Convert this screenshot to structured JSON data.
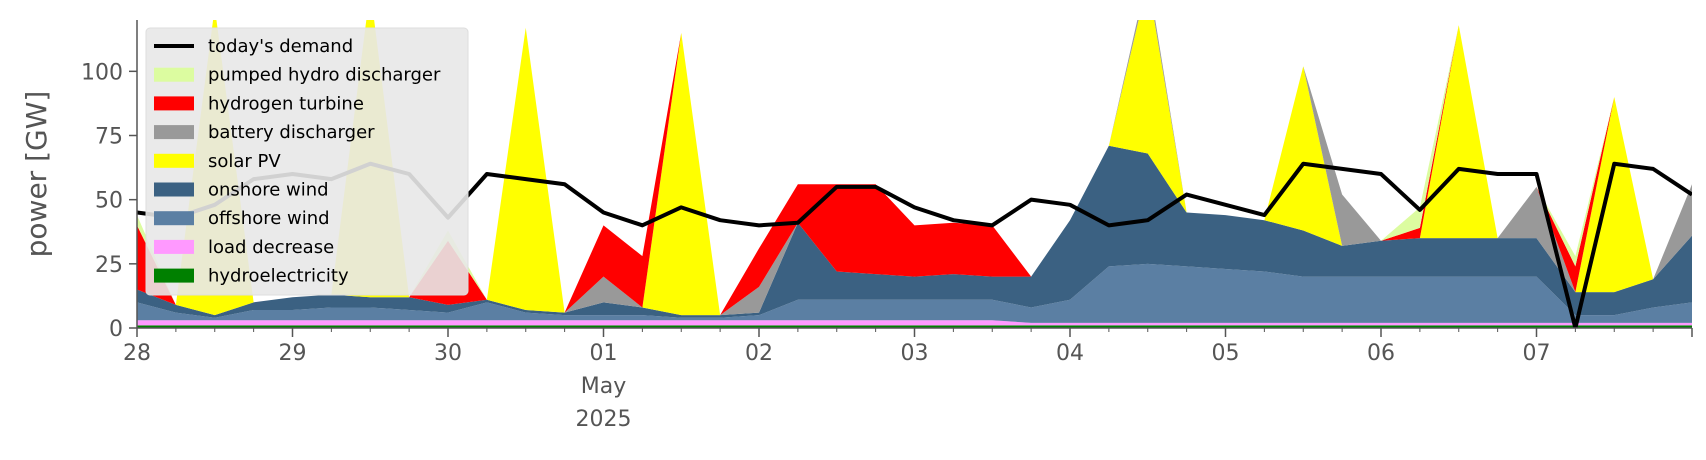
{
  "chart_data": {
    "type": "area",
    "ylabel": "power [GW]",
    "ylim": [
      0,
      120
    ],
    "xlim": [
      "2025-04-28T00:00",
      "2025-05-08T00:00"
    ],
    "grid": false,
    "legend_position": "top-left",
    "x_tick_labels": [
      {
        "at": "2025-04-28T00:00",
        "text": "28"
      },
      {
        "at": "2025-04-29T00:00",
        "text": "29"
      },
      {
        "at": "2025-04-30T00:00",
        "text": "30"
      },
      {
        "at": "2025-05-01T00:00",
        "text": "01"
      },
      {
        "at": "2025-05-02T00:00",
        "text": "02"
      },
      {
        "at": "2025-05-03T00:00",
        "text": "03"
      },
      {
        "at": "2025-05-04T00:00",
        "text": "04"
      },
      {
        "at": "2025-05-05T00:00",
        "text": "05"
      },
      {
        "at": "2025-05-06T00:00",
        "text": "06"
      },
      {
        "at": "2025-05-07T00:00",
        "text": "07"
      }
    ],
    "x_tick_sublabels": {
      "at": "2025-05-01T00:00",
      "month": "May",
      "year": "2025"
    },
    "y_ticks": [
      0,
      25,
      50,
      75,
      100
    ],
    "x": [
      "2025-04-28T00:00",
      "2025-04-28T06:00",
      "2025-04-28T12:00",
      "2025-04-28T18:00",
      "2025-04-29T00:00",
      "2025-04-29T06:00",
      "2025-04-29T12:00",
      "2025-04-29T18:00",
      "2025-04-30T00:00",
      "2025-04-30T06:00",
      "2025-04-30T12:00",
      "2025-04-30T18:00",
      "2025-05-01T00:00",
      "2025-05-01T06:00",
      "2025-05-01T12:00",
      "2025-05-01T18:00",
      "2025-05-02T00:00",
      "2025-05-02T06:00",
      "2025-05-02T12:00",
      "2025-05-02T18:00",
      "2025-05-03T00:00",
      "2025-05-03T06:00",
      "2025-05-03T12:00",
      "2025-05-03T18:00",
      "2025-05-04T00:00",
      "2025-05-04T06:00",
      "2025-05-04T12:00",
      "2025-05-04T18:00",
      "2025-05-05T00:00",
      "2025-05-05T06:00",
      "2025-05-05T12:00",
      "2025-05-05T18:00",
      "2025-05-06T00:00",
      "2025-05-06T06:00",
      "2025-05-06T12:00",
      "2025-05-06T18:00",
      "2025-05-07T00:00",
      "2025-05-07T06:00",
      "2025-05-07T12:00",
      "2025-05-07T18:00",
      "2025-05-08T00:00"
    ],
    "series": [
      {
        "name": "hydroelectricity",
        "color": "#008000",
        "values": [
          1,
          1,
          1,
          1,
          1,
          1,
          1,
          1,
          1,
          1,
          1,
          1,
          1,
          1,
          1,
          1,
          1,
          1,
          1,
          1,
          1,
          1,
          1,
          1,
          1,
          1,
          1,
          1,
          1,
          1,
          1,
          1,
          1,
          1,
          1,
          1,
          1,
          1,
          1,
          1,
          1
        ]
      },
      {
        "name": "load decrease",
        "color": "#ff99ff",
        "values": [
          2,
          2,
          2,
          2,
          2,
          2,
          2,
          2,
          2,
          2,
          2,
          2,
          2,
          2,
          2,
          2,
          2,
          2,
          2,
          2,
          2,
          2,
          2,
          1,
          1,
          1,
          1,
          1,
          1,
          1,
          1,
          1,
          1,
          1,
          1,
          1,
          1,
          1,
          1,
          1,
          1
        ]
      },
      {
        "name": "offshore wind",
        "color": "#5b7fa3",
        "values": [
          7,
          3,
          1,
          4,
          4,
          5,
          5,
          4,
          3,
          7,
          3,
          2,
          2,
          2,
          1,
          1,
          2,
          8,
          8,
          8,
          8,
          8,
          8,
          6,
          9,
          22,
          23,
          22,
          21,
          20,
          18,
          18,
          18,
          18,
          18,
          18,
          18,
          3,
          3,
          6,
          8
        ]
      },
      {
        "name": "onshore wind",
        "color": "#3b6182",
        "values": [
          5,
          3,
          1,
          3,
          5,
          5,
          4,
          5,
          3,
          1,
          1,
          1,
          5,
          3,
          1,
          1,
          1,
          30,
          11,
          10,
          9,
          10,
          9,
          12,
          31,
          47,
          43,
          21,
          21,
          20,
          18,
          12,
          14,
          15,
          15,
          15,
          15,
          9,
          9,
          11,
          26
        ]
      },
      {
        "name": "solar PV",
        "color": "#ffff00",
        "values": [
          0,
          0,
          120,
          0,
          0,
          0,
          120,
          0,
          0,
          0,
          110,
          0,
          0,
          0,
          110,
          0,
          0,
          0,
          0,
          0,
          0,
          0,
          0,
          0,
          0,
          0,
          67,
          0,
          0,
          0,
          64,
          0,
          0,
          0,
          83,
          0,
          0,
          0,
          76,
          0,
          0
        ]
      },
      {
        "name": "battery discharger",
        "color": "#999999",
        "values": [
          0,
          0,
          0,
          0,
          0,
          0,
          0,
          0,
          0,
          0,
          0,
          0,
          10,
          0,
          0,
          0,
          10,
          0,
          0,
          0,
          0,
          0,
          0,
          0,
          0,
          0,
          3,
          0,
          0,
          0,
          0,
          20,
          0,
          0,
          0,
          0,
          20,
          0,
          0,
          0,
          20
        ]
      },
      {
        "name": "hydrogen turbine",
        "color": "#ff0000",
        "values": [
          25,
          0,
          0,
          0,
          0,
          0,
          0,
          0,
          25,
          0,
          0,
          0,
          20,
          20,
          0,
          0,
          15,
          15,
          34,
          35,
          20,
          20,
          20,
          0,
          0,
          0,
          0,
          0,
          0,
          0,
          0,
          0,
          0,
          4,
          0,
          0,
          0,
          10,
          0,
          0,
          0
        ]
      },
      {
        "name": "pumped hydro discharger",
        "color": "#dcfca0",
        "values": [
          4,
          0,
          0,
          0,
          0,
          0,
          0,
          0,
          4,
          0,
          0,
          0,
          0,
          0,
          0,
          0,
          0,
          0,
          0,
          0,
          0,
          0,
          0,
          0,
          0,
          0,
          0,
          0,
          0,
          0,
          0,
          0,
          0,
          8,
          0,
          0,
          0,
          4,
          0,
          0,
          0
        ]
      }
    ],
    "demand": {
      "name": "today's demand",
      "color": "#000000",
      "values": [
        45,
        43,
        48,
        58,
        60,
        58,
        64,
        60,
        43,
        60,
        58,
        56,
        45,
        40,
        47,
        42,
        40,
        41,
        55,
        55,
        47,
        42,
        40,
        50,
        48,
        40,
        42,
        52,
        48,
        44,
        64,
        62,
        60,
        46,
        62,
        60,
        60,
        0,
        64,
        62,
        52
      ]
    },
    "legend": [
      "today's demand",
      "pumped hydro discharger",
      "hydrogen turbine",
      "battery discharger",
      "solar PV",
      "onshore wind",
      "offshore wind",
      "load decrease",
      "hydroelectricity"
    ]
  }
}
